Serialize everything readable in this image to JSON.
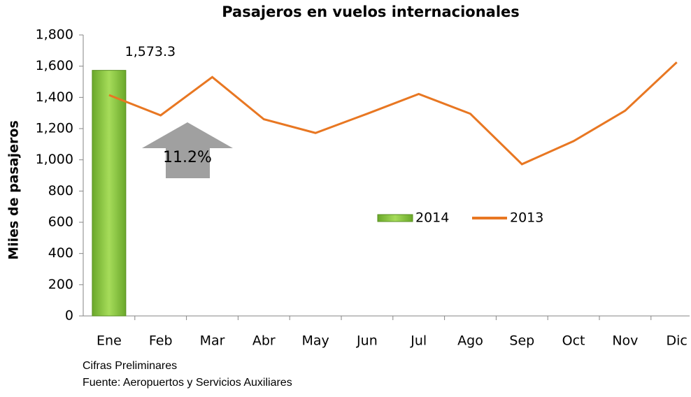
{
  "chart_data": {
    "type": "bar",
    "title": "Pasajeros en vuelos internacionales",
    "y_label": "Miies  de pasajeros",
    "categories": [
      "Ene",
      "Feb",
      "Mar",
      "Abr",
      "May",
      "Jun",
      "Jul",
      "Ago",
      "Sep",
      "Oct",
      "Nov",
      "Dic"
    ],
    "series": [
      {
        "name": "2014",
        "type": "bar",
        "color": "#8cc63e",
        "values": [
          1573.3,
          null,
          null,
          null,
          null,
          null,
          null,
          null,
          null,
          null,
          null,
          null
        ],
        "value_labels": [
          "1,573.3",
          null,
          null,
          null,
          null,
          null,
          null,
          null,
          null,
          null,
          null,
          null
        ]
      },
      {
        "name": "2013",
        "type": "line",
        "color": "#e87722",
        "values": [
          1415,
          1285,
          1530,
          1260,
          1172,
          1295,
          1422,
          1295,
          972,
          1120,
          1315,
          1625
        ]
      }
    ],
    "ylim": [
      0,
      1800
    ],
    "yticks": [
      0,
      200,
      400,
      600,
      800,
      {
        "value": 1000,
        "label": "1,000"
      },
      {
        "value": 1200,
        "label": "1,200"
      },
      {
        "value": 1400,
        "label": "1,400"
      },
      {
        "value": 1600,
        "label": "1,600"
      },
      {
        "value": 1800,
        "label": "1,800"
      }
    ],
    "annotation": "11.2%",
    "notes": [
      "Cifras Preliminares",
      "Fuente: Aeropuertos y  Servicios Auxiliares"
    ]
  }
}
